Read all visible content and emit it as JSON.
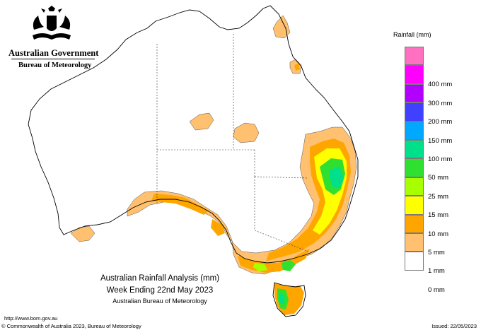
{
  "header": {
    "government": "Australian Government",
    "bureau": "Bureau of Meteorology"
  },
  "legend": {
    "title": "Rainfall (mm)",
    "bins": [
      {
        "label": "",
        "color": "#ff70c0"
      },
      {
        "label": "400 mm",
        "color": "#ff00ff"
      },
      {
        "label": "300 mm",
        "color": "#b200ff"
      },
      {
        "label": "200 mm",
        "color": "#4040ff"
      },
      {
        "label": "150 mm",
        "color": "#00a8ff"
      },
      {
        "label": "100 mm",
        "color": "#00e08a"
      },
      {
        "label": "50 mm",
        "color": "#30e030"
      },
      {
        "label": "25 mm",
        "color": "#a8ff00"
      },
      {
        "label": "15 mm",
        "color": "#ffff00"
      },
      {
        "label": "10 mm",
        "color": "#ffa500"
      },
      {
        "label": "5 mm",
        "color": "#ffc070"
      },
      {
        "label": "1 mm",
        "color": "#ffffff"
      },
      {
        "label": "0 mm",
        "color": ""
      }
    ]
  },
  "caption": {
    "line1": "Australian Rainfall Analysis (mm)",
    "line2": "Week Ending 22nd May 2023",
    "line3": "Australian Bureau of Meteorology"
  },
  "footer": {
    "url": "http://www.bom.gov.au",
    "copyright": "© Commonwealth of Australia 2023, Bureau of Meteorology",
    "issued": "Issued: 22/05/2023"
  },
  "colors": {
    "light_orange": "#ffc070",
    "orange": "#ffa500",
    "yellow": "#ffff00",
    "lime": "#a8ff00",
    "green": "#30e030",
    "teal": "#00e08a",
    "cyan": "#00a8ff"
  }
}
